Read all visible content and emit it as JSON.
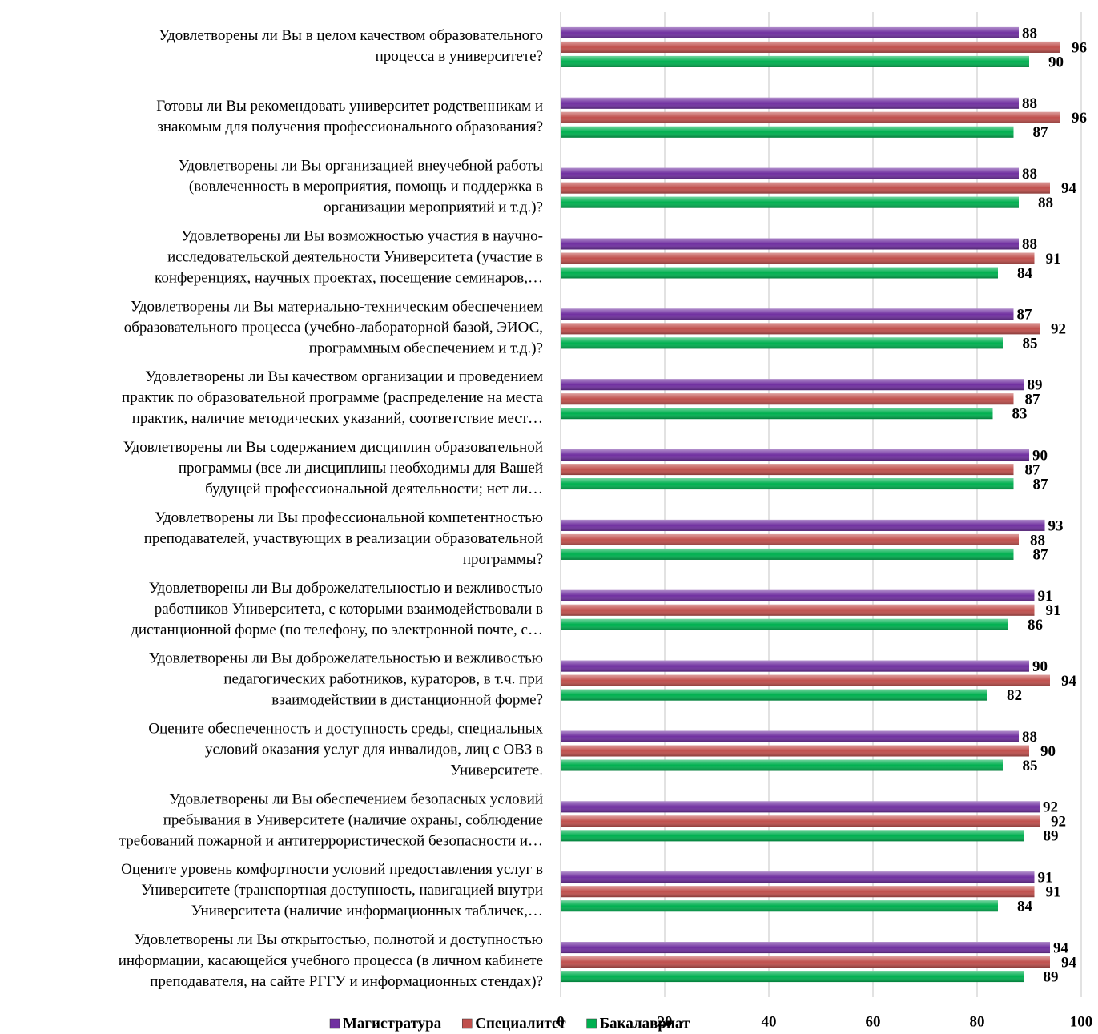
{
  "chart_data": {
    "type": "bar",
    "orientation": "horizontal",
    "categories": [
      "Удовлетворены ли Вы в целом качеством образовательного\nпроцесса в университете?",
      "Готовы ли Вы рекомендовать университет родственникам и\nзнакомым для получения профессионального образования?",
      "Удовлетворены ли Вы организацией внеучебной работы\n(вовлеченность в мероприятия, помощь и поддержка в\nорганизации мероприятий и т.д.)?",
      "Удовлетворены ли Вы возможностью участия в научно-\nисследовательской деятельности Университета (участие в\nконференциях, научных проектах, посещение семинаров,…",
      "Удовлетворены ли Вы материально-техническим обеспечением\nобразовательного процесса (учебно-лабораторной базой, ЭИОС,\nпрограммным обеспечением и т.д.)?",
      "Удовлетворены ли Вы качеством организации и проведением\nпрактик по образовательной программе (распределение на места\nпрактик, наличие методических указаний, соответствие мест…",
      "Удовлетворены ли Вы содержанием дисциплин образовательной\nпрограммы (все ли дисциплины необходимы для Вашей\nбудущей профессиональной деятельности; нет ли…",
      "Удовлетворены ли Вы профессиональной компетентностью\nпреподавателей, участвующих в реализации образовательной\nпрограммы?",
      "Удовлетворены ли Вы доброжелательностью и вежливостью\nработников Университета, с которыми взаимодействовали в\nдистанционной форме (по телефону, по электронной почте, с…",
      "Удовлетворены ли Вы доброжелательностью и вежливостью\nпедагогических работников, кураторов, в т.ч. при\nвзаимодействии в дистанционной форме?",
      "Оцените обеспеченность и доступность среды, специальных\nусловий оказания услуг для инвалидов, лиц с ОВЗ в\nУниверситете.",
      "Удовлетворены ли Вы обеспечением безопасных условий\nпребывания в Университете (наличие охраны, соблюдение\nтребований пожарной и антитеррористической безопасности и…",
      "Оцените уровень комфортности условий предоставления услуг в\nУниверситете (транспортная доступность, навигацией внутри\nУниверситета (наличие информационных табличек,…",
      "Удовлетворены ли Вы открытостью, полнотой и доступностью\nинформации, касающейся учебного процесса (в личном кабинете\nпреподавателя, на сайте РГГУ и информационных стендах)?"
    ],
    "series": [
      {
        "name": "Магистратура",
        "color": "#7030a0",
        "values": [
          88,
          88,
          88,
          88,
          87,
          89,
          90,
          93,
          91,
          90,
          88,
          92,
          91,
          94
        ]
      },
      {
        "name": "Специалитет",
        "color": "#c0504d",
        "values": [
          96,
          96,
          94,
          91,
          92,
          87,
          87,
          88,
          91,
          94,
          90,
          92,
          91,
          94
        ]
      },
      {
        "name": "Бакалавриат",
        "color": "#00b050",
        "values": [
          90,
          87,
          88,
          84,
          85,
          83,
          87,
          87,
          86,
          82,
          85,
          89,
          84,
          89
        ]
      }
    ],
    "xlim": [
      0,
      100
    ],
    "xticks": [
      0,
      20,
      40,
      60,
      80,
      100
    ],
    "grid": true,
    "legend": "bottom"
  }
}
